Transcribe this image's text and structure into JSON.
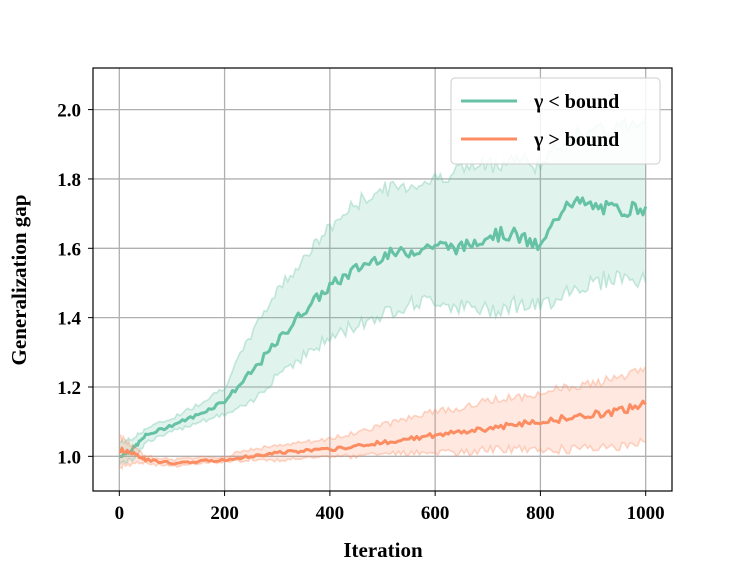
{
  "chart_data": {
    "type": "line",
    "xlabel": "Iteration",
    "ylabel": "Generalization gap",
    "xlim": [
      -50,
      1050
    ],
    "ylim": [
      0.9,
      2.12
    ],
    "xticks": [
      "0",
      "200",
      "400",
      "600",
      "800",
      "1000"
    ],
    "yticks": [
      "1.0",
      "1.2",
      "1.4",
      "1.6",
      "1.8",
      "2.0"
    ],
    "grid": true,
    "legend_position": "upper-right",
    "series": [
      {
        "name": "γ < bound",
        "color": "#66c2a5",
        "x": [
          0,
          25,
          50,
          100,
          150,
          200,
          250,
          300,
          350,
          400,
          450,
          500,
          550,
          600,
          650,
          700,
          750,
          800,
          850,
          900,
          950,
          1000
        ],
        "mean": [
          1.0,
          1.02,
          1.06,
          1.09,
          1.12,
          1.16,
          1.24,
          1.33,
          1.42,
          1.49,
          1.54,
          1.58,
          1.59,
          1.61,
          1.6,
          1.64,
          1.64,
          1.6,
          1.74,
          1.72,
          1.71,
          1.72
        ],
        "upper": [
          1.04,
          1.05,
          1.08,
          1.11,
          1.15,
          1.2,
          1.35,
          1.48,
          1.57,
          1.66,
          1.73,
          1.77,
          1.78,
          1.8,
          1.83,
          1.84,
          1.86,
          1.84,
          1.92,
          1.93,
          1.95,
          1.98
        ],
        "lower": [
          0.98,
          0.99,
          1.04,
          1.07,
          1.1,
          1.12,
          1.15,
          1.24,
          1.29,
          1.34,
          1.38,
          1.41,
          1.44,
          1.45,
          1.43,
          1.42,
          1.44,
          1.43,
          1.48,
          1.5,
          1.52,
          1.5
        ]
      },
      {
        "name": "γ > bound",
        "color": "#fc8d62",
        "x": [
          0,
          25,
          50,
          100,
          150,
          200,
          250,
          300,
          350,
          400,
          450,
          500,
          550,
          600,
          650,
          700,
          750,
          800,
          850,
          900,
          950,
          1000
        ],
        "mean": [
          1.02,
          1.01,
          0.99,
          0.98,
          0.985,
          0.99,
          1.0,
          1.01,
          1.015,
          1.02,
          1.03,
          1.04,
          1.05,
          1.06,
          1.07,
          1.08,
          1.09,
          1.1,
          1.11,
          1.12,
          1.13,
          1.15
        ],
        "upper": [
          1.06,
          1.03,
          1.0,
          0.99,
          0.995,
          1.0,
          1.02,
          1.03,
          1.04,
          1.05,
          1.07,
          1.09,
          1.11,
          1.13,
          1.14,
          1.16,
          1.17,
          1.18,
          1.2,
          1.21,
          1.23,
          1.26
        ],
        "lower": [
          0.97,
          0.98,
          0.98,
          0.97,
          0.98,
          0.985,
          0.99,
          0.99,
          0.995,
          1.0,
          1.0,
          1.01,
          1.01,
          1.01,
          1.01,
          1.02,
          1.02,
          1.02,
          1.02,
          1.03,
          1.03,
          1.04
        ]
      }
    ]
  }
}
